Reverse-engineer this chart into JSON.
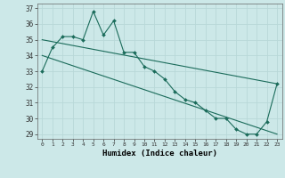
{
  "xlabel": "Humidex (Indice chaleur)",
  "background_color": "#cce8e8",
  "grid_color": "#b8d8d8",
  "line_color": "#1a6b5a",
  "xlim": [
    -0.5,
    23.5
  ],
  "ylim": [
    28.7,
    37.3
  ],
  "yticks": [
    29,
    30,
    31,
    32,
    33,
    34,
    35,
    36,
    37
  ],
  "xtick_labels": [
    "0",
    "1",
    "2",
    "3",
    "4",
    "5",
    "6",
    "7",
    "8",
    "9",
    "10",
    "11",
    "12",
    "13",
    "14",
    "15",
    "16",
    "17",
    "18",
    "19",
    "20",
    "21",
    "22",
    "23"
  ],
  "series1_x": [
    0,
    1,
    2,
    3,
    4,
    5,
    6,
    7,
    8,
    9,
    10,
    11,
    12,
    13,
    14,
    15,
    16,
    17,
    18,
    19,
    20,
    21,
    22,
    23
  ],
  "series1_y": [
    33.0,
    34.5,
    35.2,
    35.2,
    35.0,
    36.8,
    35.3,
    36.2,
    34.2,
    34.2,
    33.3,
    33.0,
    32.5,
    31.7,
    31.2,
    31.0,
    30.5,
    30.0,
    30.0,
    29.3,
    29.0,
    29.0,
    29.8,
    32.2
  ],
  "series2_x": [
    0,
    23
  ],
  "series2_y": [
    35.0,
    32.2
  ],
  "series3_x": [
    0,
    23
  ],
  "series3_y": [
    34.0,
    29.0
  ]
}
